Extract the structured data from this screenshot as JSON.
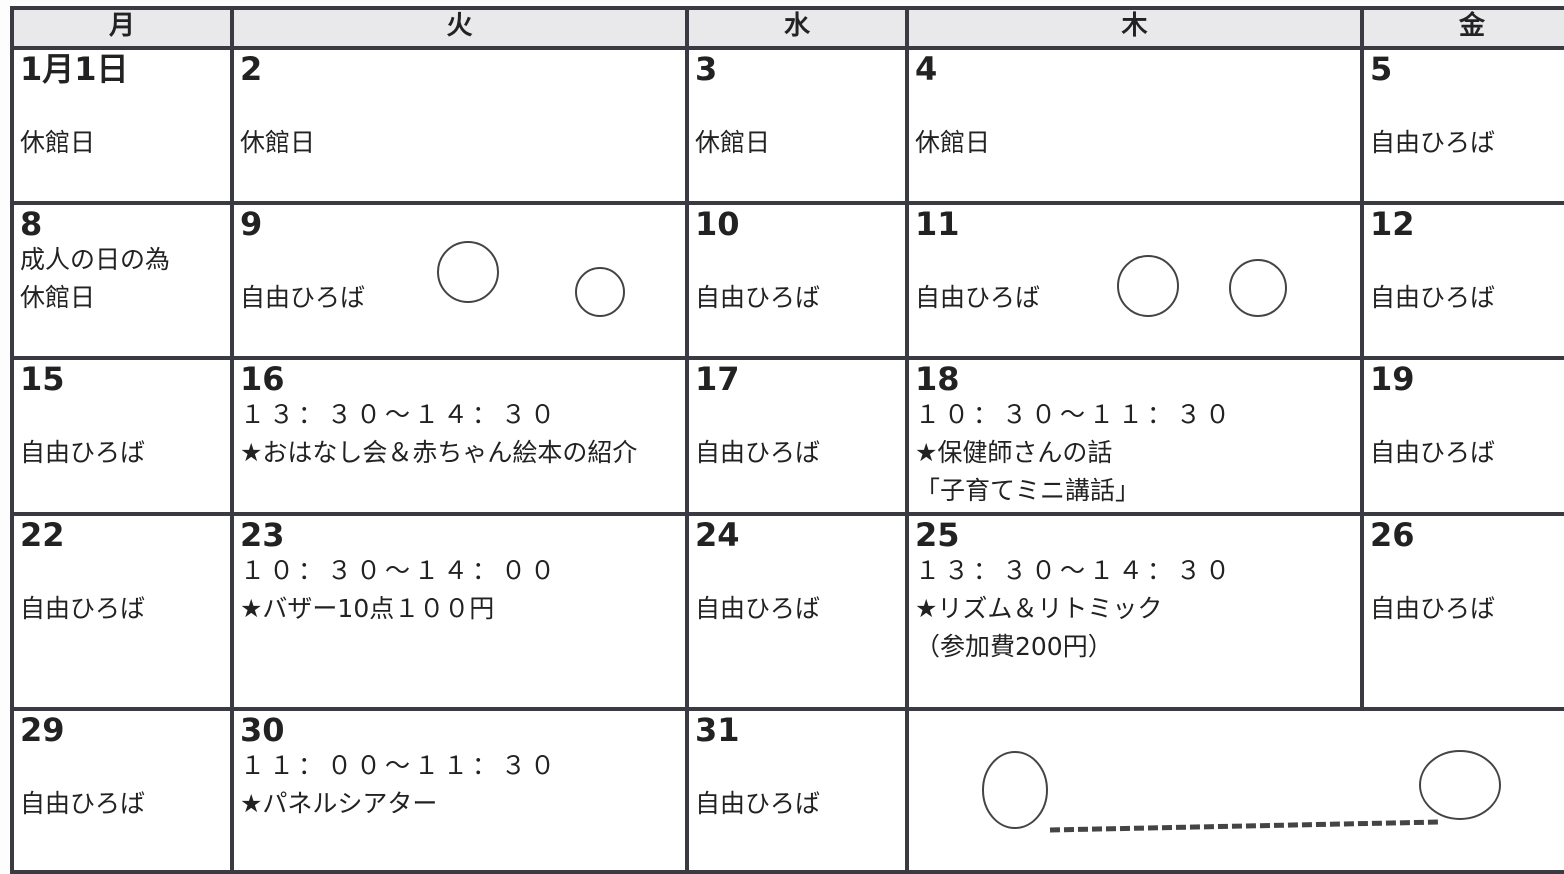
{
  "header": {
    "days": [
      "月",
      "火",
      "水",
      "木",
      "金"
    ]
  },
  "weeks": [
    {
      "cells": [
        {
          "date": "1月1日",
          "lines": [
            "休館日"
          ]
        },
        {
          "date": "2",
          "lines": [
            "休館日"
          ]
        },
        {
          "date": "3",
          "lines": [
            "休館日"
          ]
        },
        {
          "date": "4",
          "lines": [
            "休館日"
          ]
        },
        {
          "date": "5",
          "lines": [
            "自由ひろば"
          ]
        }
      ]
    },
    {
      "cells": [
        {
          "date": "8",
          "lines": [
            "成人の日の為",
            "休館日"
          ]
        },
        {
          "date": "9",
          "lines": [
            "自由ひろば"
          ]
        },
        {
          "date": "10",
          "lines": [
            "自由ひろば"
          ]
        },
        {
          "date": "11",
          "lines": [
            "自由ひろば"
          ]
        },
        {
          "date": "12",
          "lines": [
            "自由ひろば"
          ]
        }
      ]
    },
    {
      "cells": [
        {
          "date": "15",
          "lines": [
            "自由ひろば"
          ]
        },
        {
          "date": "16",
          "lines": [
            "１３：３０～１４：３０",
            "★おはなし会＆赤ちゃん絵本の紹介"
          ]
        },
        {
          "date": "17",
          "lines": [
            "自由ひろば"
          ]
        },
        {
          "date": "18",
          "lines": [
            "１０：３０～１１：３０",
            "★保健師さんの話",
            "「子育てミニ講話」"
          ]
        },
        {
          "date": "19",
          "lines": [
            "自由ひろば"
          ]
        }
      ]
    },
    {
      "cells": [
        {
          "date": "22",
          "lines": [
            "自由ひろば"
          ]
        },
        {
          "date": "23",
          "lines": [
            "１０：３０～１４：００",
            "★バザー10点１００円"
          ]
        },
        {
          "date": "24",
          "lines": [
            "自由ひろば"
          ]
        },
        {
          "date": "25",
          "lines": [
            "１３：３０～１４：３０",
            "★リズム＆リトミック",
            "（参加費200円）"
          ]
        },
        {
          "date": "26",
          "lines": [
            "自由ひろば"
          ]
        }
      ]
    },
    {
      "cells": [
        {
          "date": "29",
          "lines": [
            "自由ひろば"
          ]
        },
        {
          "date": "30",
          "lines": [
            "１１：００～１１：３０",
            "★パネルシアター"
          ]
        },
        {
          "date": "31",
          "lines": [
            "自由ひろば"
          ]
        }
      ]
    }
  ]
}
